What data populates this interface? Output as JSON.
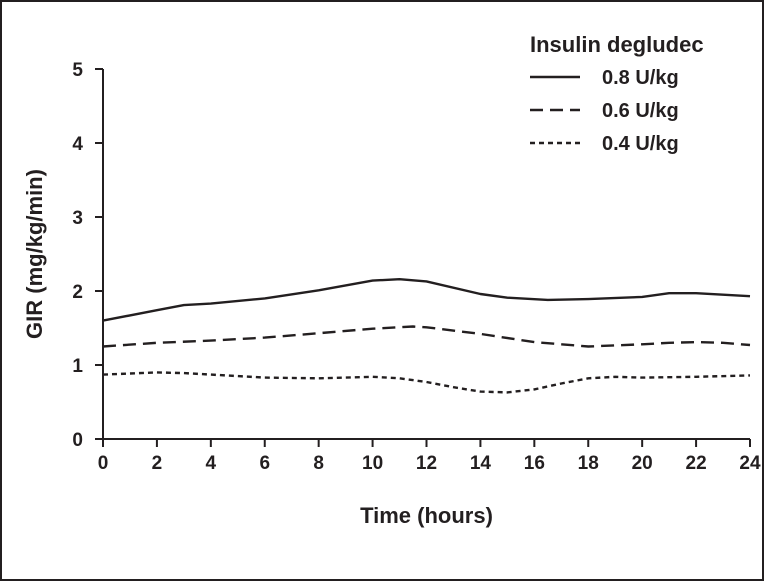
{
  "chart_data": {
    "type": "line",
    "title": "",
    "xlabel": "Time (hours)",
    "ylabel": "GIR (mg/kg/min)",
    "xlim": [
      0,
      24
    ],
    "ylim": [
      0,
      5
    ],
    "x_ticks": [
      "0",
      "2",
      "4",
      "6",
      "8",
      "10",
      "12",
      "14",
      "16",
      "18",
      "20",
      "22",
      "24"
    ],
    "y_ticks": [
      "0",
      "1",
      "2",
      "3",
      "4",
      "5"
    ],
    "grid": false,
    "legend": {
      "title": "Insulin degludec",
      "placement": "top-right"
    },
    "series": [
      {
        "name": "0.8 U/kg",
        "dash": "solid",
        "points": [
          [
            0,
            1.6
          ],
          [
            2,
            1.74
          ],
          [
            3,
            1.81
          ],
          [
            4,
            1.83
          ],
          [
            6,
            1.9
          ],
          [
            8,
            2.01
          ],
          [
            10,
            2.14
          ],
          [
            11,
            2.16
          ],
          [
            12,
            2.13
          ],
          [
            14,
            1.96
          ],
          [
            15,
            1.91
          ],
          [
            16.5,
            1.88
          ],
          [
            18,
            1.89
          ],
          [
            20,
            1.92
          ],
          [
            21,
            1.97
          ],
          [
            22,
            1.97
          ],
          [
            24,
            1.93
          ]
        ]
      },
      {
        "name": "0.6 U/kg",
        "dash": "dashed",
        "points": [
          [
            0,
            1.25
          ],
          [
            2,
            1.3
          ],
          [
            4,
            1.33
          ],
          [
            6,
            1.37
          ],
          [
            8,
            1.43
          ],
          [
            10,
            1.49
          ],
          [
            11.5,
            1.52
          ],
          [
            12,
            1.51
          ],
          [
            14,
            1.42
          ],
          [
            16,
            1.31
          ],
          [
            18,
            1.25
          ],
          [
            20,
            1.28
          ],
          [
            21,
            1.3
          ],
          [
            22,
            1.31
          ],
          [
            23,
            1.3
          ],
          [
            24,
            1.27
          ]
        ]
      },
      {
        "name": "0.4 U/kg",
        "dash": "dotted",
        "points": [
          [
            0,
            0.87
          ],
          [
            2,
            0.9
          ],
          [
            3,
            0.89
          ],
          [
            4,
            0.87
          ],
          [
            6,
            0.83
          ],
          [
            8,
            0.82
          ],
          [
            10,
            0.84
          ],
          [
            11,
            0.82
          ],
          [
            12,
            0.77
          ],
          [
            13,
            0.7
          ],
          [
            14,
            0.64
          ],
          [
            15,
            0.63
          ],
          [
            16,
            0.67
          ],
          [
            17,
            0.75
          ],
          [
            18,
            0.82
          ],
          [
            19,
            0.84
          ],
          [
            20,
            0.83
          ],
          [
            22,
            0.84
          ],
          [
            24,
            0.86
          ]
        ]
      }
    ]
  }
}
